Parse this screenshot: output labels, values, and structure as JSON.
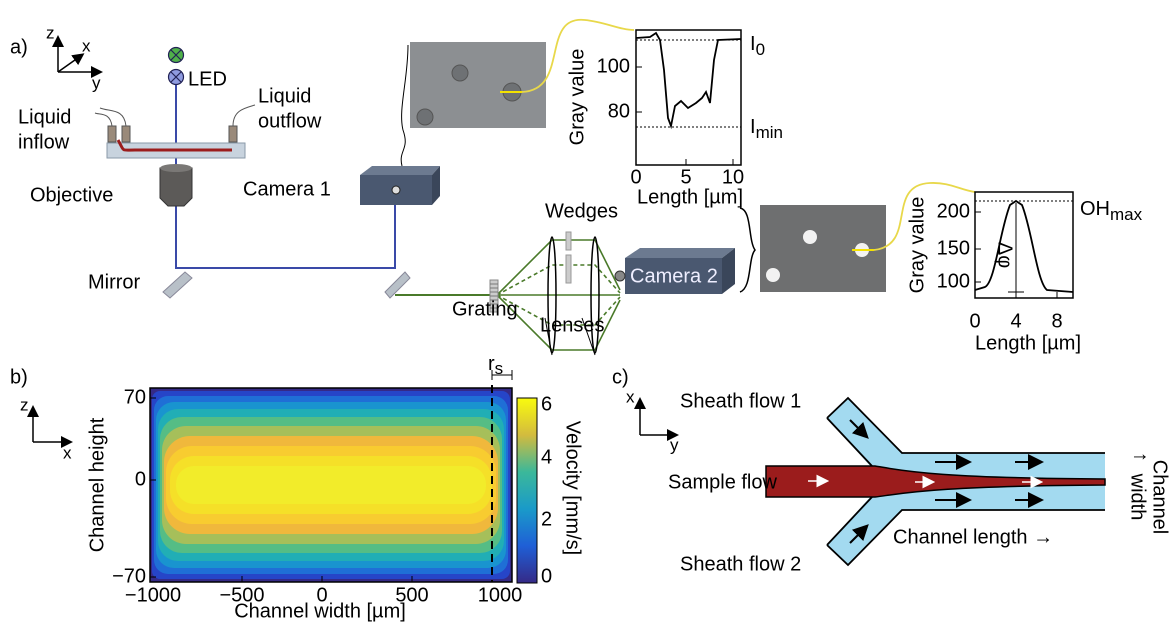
{
  "panel_a": {
    "label": "a)",
    "axes": {
      "z": "z",
      "x": "x",
      "y": "y"
    },
    "led": "LED",
    "liquid_inflow": [
      "Liquid",
      "inflow"
    ],
    "liquid_outflow": [
      "Liquid",
      "outflow"
    ],
    "objective": "Objective",
    "camera_1": "Camera 1",
    "mirror": "Mirror",
    "grating": "Grating",
    "wedges": "Wedges",
    "lenses": "Lenses",
    "camera_2": "Camera 2",
    "plot_1": {
      "ylabel": "Gray value",
      "xlabel": "Length [µm]",
      "yticks": [
        "100",
        "80"
      ],
      "xticks": [
        "0",
        "5",
        "10"
      ],
      "i0": [
        "I",
        "0"
      ],
      "imin": [
        "I",
        "min"
      ]
    },
    "plot_2": {
      "ylabel": "Gray value",
      "xlabel": "Length [µm]",
      "yticks": [
        "200",
        "150",
        "100"
      ],
      "xticks": [
        "0",
        "4",
        "8"
      ],
      "ohmax": [
        "OH",
        "max"
      ],
      "dphi": "Δφ"
    }
  },
  "panel_b": {
    "label": "b)",
    "axes": {
      "z": "z",
      "x": "x"
    },
    "ylabel": "Channel height",
    "xlabel": "Channel width [µm]",
    "yticks": [
      "70",
      "0",
      "−70"
    ],
    "xticks": [
      "−1000",
      "−500",
      "0",
      "500",
      "1000"
    ],
    "rs": [
      "r",
      "s"
    ],
    "colorbar_label": "Velocity [mm/s]",
    "colorbar_ticks": [
      "6",
      "4",
      "2",
      "0"
    ]
  },
  "panel_c": {
    "label": "c)",
    "axes": {
      "x": "x",
      "y": "y"
    },
    "sheath_flow_1": "Sheath flow 1",
    "sample_flow": "Sample flow",
    "sheath_flow_2": "Sheath flow 2",
    "channel_length": "Channel length →",
    "channel_width": [
      "Channel",
      "width"
    ],
    "width_arrow": "↑"
  }
}
